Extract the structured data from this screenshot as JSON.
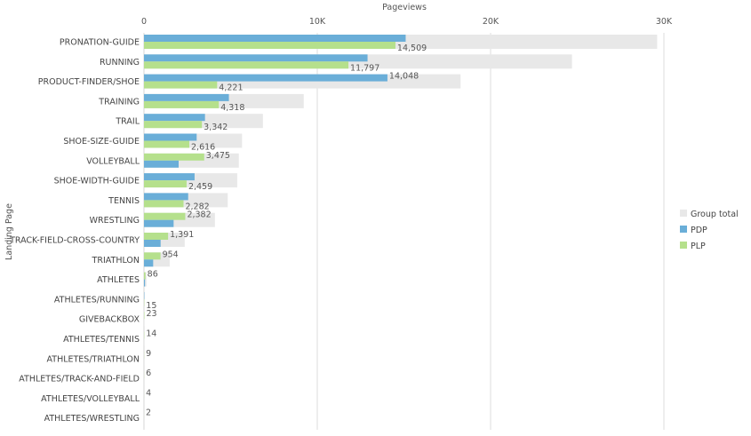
{
  "chart_data": {
    "type": "bar",
    "orientation": "horizontal",
    "title": "",
    "xlabel": "Pageviews",
    "ylabel": "Landing Page",
    "xlim": [
      0,
      30000
    ],
    "xticks": [
      0,
      10000,
      20000,
      30000
    ],
    "xtick_labels": [
      "0",
      "10K",
      "20K",
      "30K"
    ],
    "grid": true,
    "legend_position": "right",
    "legend": [
      {
        "name": "Group total",
        "color": "#e8e8e8"
      },
      {
        "name": "PDP",
        "color": "#6aaed8"
      },
      {
        "name": "PLP",
        "color": "#b5e08c"
      }
    ],
    "categories": [
      "PRONATION-GUIDE",
      "RUNNING",
      "PRODUCT-FINDER/SHOE",
      "TRAINING",
      "TRAIL",
      "SHOE-SIZE-GUIDE",
      "VOLLEYBALL",
      "SHOE-WIDTH-GUIDE",
      "TENNIS",
      "WRESTLING",
      "TRACK-FIELD-CROSS-COUNTRY",
      "TRIATHLON",
      "ATHLETES",
      "ATHLETES/RUNNING",
      "GIVEBACKBOX",
      "ATHLETES/TENNIS",
      "ATHLETES/TRIATHLON",
      "ATHLETES/TRACK-AND-FIELD",
      "ATHLETES/VOLLEYBALL",
      "ATHLETES/WRESTLING"
    ],
    "series": [
      {
        "name": "PDP",
        "values": [
          15100,
          12900,
          14048,
          4900,
          3520,
          3040,
          2000,
          2920,
          2550,
          1710,
          960,
          530,
          60,
          20,
          0,
          0,
          0,
          0,
          0,
          0
        ]
      },
      {
        "name": "PLP",
        "values": [
          14509,
          11797,
          4221,
          4318,
          3342,
          2616,
          3475,
          2459,
          2282,
          2382,
          1391,
          954,
          86,
          15,
          23,
          14,
          9,
          6,
          4,
          2
        ]
      }
    ],
    "top_series": [
      "PDP",
      "PDP",
      "PDP",
      "PDP",
      "PDP",
      "PDP",
      "PLP",
      "PDP",
      "PDP",
      "PLP",
      "PLP",
      "PLP",
      "PLP",
      "PDP",
      "PLP",
      "PLP",
      "PLP",
      "PLP",
      "PLP",
      "PLP"
    ],
    "data_labels": [
      {
        "row": 0,
        "series": "PLP",
        "text": "14,509"
      },
      {
        "row": 1,
        "series": "PLP",
        "text": "11,797"
      },
      {
        "row": 2,
        "series": "PDP",
        "text": "14,048"
      },
      {
        "row": 2,
        "series": "PLP",
        "text": "4,221"
      },
      {
        "row": 3,
        "series": "PLP",
        "text": "4,318"
      },
      {
        "row": 4,
        "series": "PLP",
        "text": "3,342"
      },
      {
        "row": 5,
        "series": "PLP",
        "text": "2,616"
      },
      {
        "row": 6,
        "series": "PLP",
        "text": "3,475"
      },
      {
        "row": 7,
        "series": "PLP",
        "text": "2,459"
      },
      {
        "row": 8,
        "series": "PLP",
        "text": "2,282"
      },
      {
        "row": 9,
        "series": "PLP",
        "text": "2,382"
      },
      {
        "row": 10,
        "series": "PLP",
        "text": "1,391"
      },
      {
        "row": 11,
        "series": "PLP",
        "text": "954"
      },
      {
        "row": 12,
        "series": "PLP",
        "text": "86"
      },
      {
        "row": 13,
        "series": "PLP",
        "text": "15"
      },
      {
        "row": 14,
        "series": "PLP",
        "text": "23"
      },
      {
        "row": 15,
        "series": "PLP",
        "text": "14"
      },
      {
        "row": 16,
        "series": "PLP",
        "text": "9"
      },
      {
        "row": 17,
        "series": "PLP",
        "text": "6"
      },
      {
        "row": 18,
        "series": "PLP",
        "text": "4"
      },
      {
        "row": 19,
        "series": "PLP",
        "text": "2"
      }
    ]
  }
}
